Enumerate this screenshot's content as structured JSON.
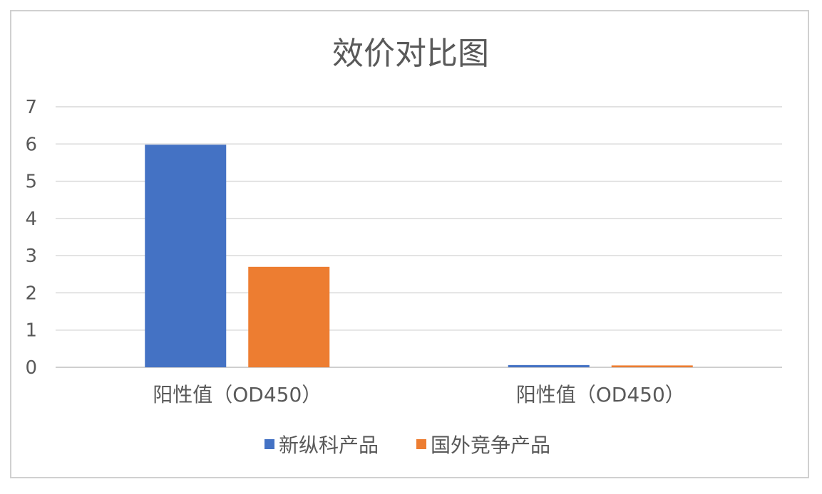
{
  "chart_data": {
    "type": "bar",
    "title": "效价对比图",
    "categories": [
      "阳性值（OD450）",
      "阳性值（OD450）"
    ],
    "series": [
      {
        "name": "新纵科产品",
        "color": "#4472C4",
        "values": [
          5.98,
          0.06
        ]
      },
      {
        "name": "国外竞争产品",
        "color": "#ED7D31",
        "values": [
          2.7,
          0.05
        ]
      }
    ],
    "yticks": [
      "0",
      "1",
      "2",
      "3",
      "4",
      "5",
      "6",
      "7"
    ],
    "ylim": [
      0,
      7
    ],
    "grid": true,
    "legend_position": "bottom",
    "xlabel": "",
    "ylabel": ""
  }
}
